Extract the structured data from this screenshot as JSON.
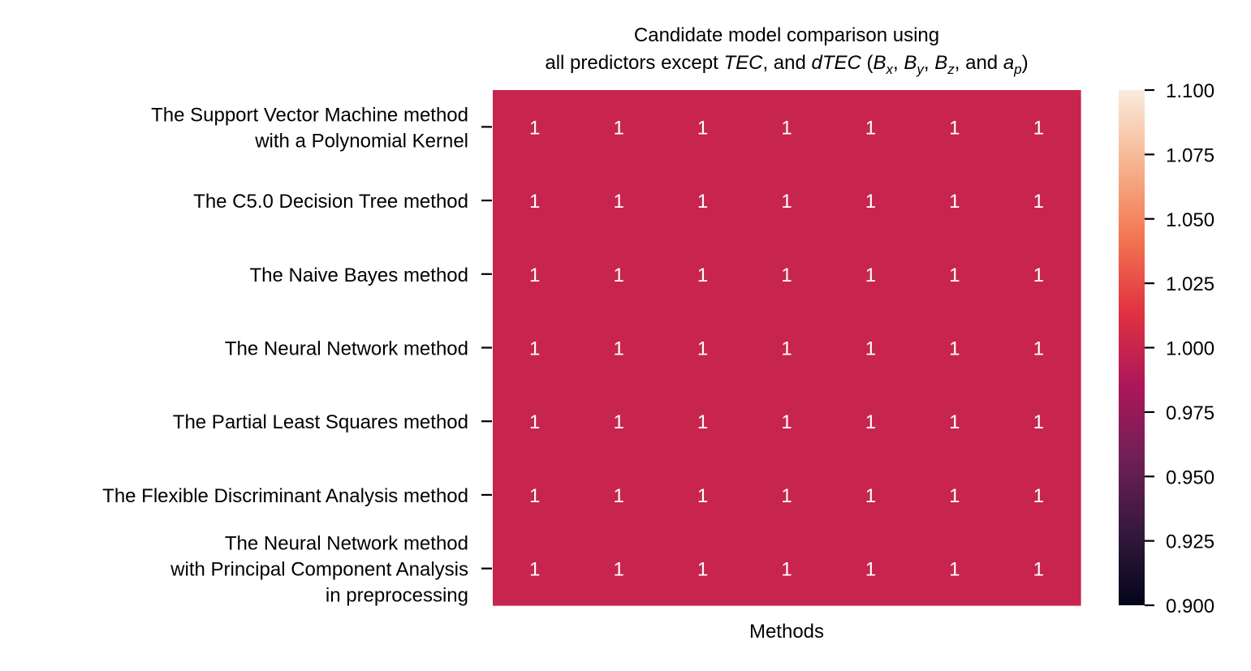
{
  "chart_data": {
    "type": "heatmap",
    "title": {
      "line1": "Candidate model comparison using",
      "line2": [
        {
          "t": "all predictors except "
        },
        {
          "t": "TEC",
          "i": true
        },
        {
          "t": ", and "
        },
        {
          "t": "dTEC",
          "i": true
        },
        {
          "t": " ("
        },
        {
          "t": "B",
          "i": true
        },
        {
          "t": "x",
          "i": true,
          "sub": true
        },
        {
          "t": ", "
        },
        {
          "t": "B",
          "i": true
        },
        {
          "t": "y",
          "i": true,
          "sub": true
        },
        {
          "t": ", "
        },
        {
          "t": "B",
          "i": true
        },
        {
          "t": "z",
          "i": true,
          "sub": true
        },
        {
          "t": ", and "
        },
        {
          "t": "a",
          "i": true
        },
        {
          "t": "p",
          "i": true,
          "sub": true
        },
        {
          "t": ")"
        }
      ]
    },
    "xlabel": "Methods",
    "rows": [
      [
        "The Support Vector Machine method",
        "with a Polynomial Kernel"
      ],
      [
        "The C5.0 Decision Tree method"
      ],
      [
        "The Naive Bayes method"
      ],
      [
        "The Neural Network method"
      ],
      [
        "The Partial Least Squares method"
      ],
      [
        "The Flexible Discriminant Analysis method"
      ],
      [
        "The Neural Network method",
        "with Principal Component Analysis",
        "in preprocessing"
      ]
    ],
    "values": [
      [
        1,
        1,
        1,
        1,
        1,
        1,
        1
      ],
      [
        1,
        1,
        1,
        1,
        1,
        1,
        1
      ],
      [
        1,
        1,
        1,
        1,
        1,
        1,
        1
      ],
      [
        1,
        1,
        1,
        1,
        1,
        1,
        1
      ],
      [
        1,
        1,
        1,
        1,
        1,
        1,
        1
      ],
      [
        1,
        1,
        1,
        1,
        1,
        1,
        1
      ],
      [
        1,
        1,
        1,
        1,
        1,
        1,
        1
      ]
    ],
    "cell_labels": [
      [
        "1",
        "1",
        "1",
        "1",
        "1",
        "1",
        "1"
      ],
      [
        "1",
        "1",
        "1",
        "1",
        "1",
        "1",
        "1"
      ],
      [
        "1",
        "1",
        "1",
        "1",
        "1",
        "1",
        "1"
      ],
      [
        "1",
        "1",
        "1",
        "1",
        "1",
        "1",
        "1"
      ],
      [
        "1",
        "1",
        "1",
        "1",
        "1",
        "1",
        "1"
      ],
      [
        "1",
        "1",
        "1",
        "1",
        "1",
        "1",
        "1"
      ],
      [
        "1",
        "1",
        "1",
        "1",
        "1",
        "1",
        "1"
      ]
    ],
    "colorbar": {
      "range": [
        0.9,
        1.1
      ],
      "ticks": [
        0.9,
        0.925,
        0.95,
        0.975,
        1.0,
        1.025,
        1.05,
        1.075,
        1.1
      ],
      "tick_labels": [
        "0.900",
        "0.925",
        "0.950",
        "0.975",
        "1.000",
        "1.025",
        "1.050",
        "1.075",
        "1.100"
      ],
      "colormap": "rocket",
      "stops": [
        "#03051a",
        "#35193e",
        "#701f57",
        "#ad1759",
        "#e13342",
        "#f37651",
        "#f6b48f",
        "#faebdd"
      ]
    },
    "legend": "none",
    "grid": false
  }
}
